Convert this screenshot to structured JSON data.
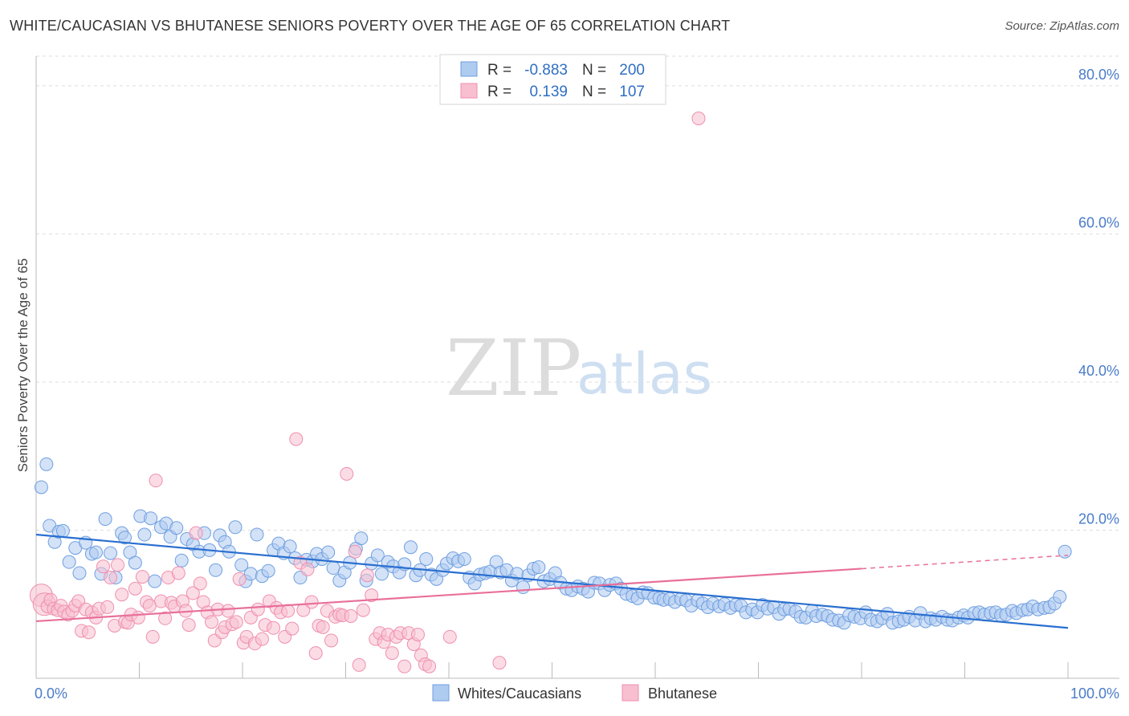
{
  "title": "WHITE/CAUCASIAN VS BHUTANESE SENIORS POVERTY OVER THE AGE OF 65 CORRELATION CHART",
  "source": "Source: ZipAtlas.com",
  "watermark": {
    "zip": "ZIP",
    "atlas": "atlas"
  },
  "colors": {
    "blue_fill": "#aecbf0",
    "blue_stroke": "#6f9fe0",
    "blue_line": "#2a6fd0",
    "pink_fill": "#f7bfd0",
    "pink_stroke": "#ef8fb0",
    "pink_line": "#e8709a",
    "grid": "#dddddd",
    "tick_label": "#4a7cc9"
  },
  "chart_data": {
    "type": "scatter",
    "title": "WHITE/CAUCASIAN VS BHUTANESE SENIORS POVERTY OVER THE AGE OF 65 CORRELATION CHART",
    "xlabel": "",
    "ylabel": "Seniors Poverty Over the Age of 65",
    "xlim": [
      0,
      100
    ],
    "ylim": [
      0,
      84
    ],
    "x_tick_labels": [
      "0.0%",
      "100.0%"
    ],
    "y_ticks": [
      20,
      40,
      60,
      80
    ],
    "y_tick_labels": [
      "20.0%",
      "40.0%",
      "60.0%",
      "80.0%"
    ],
    "grid": "horizontal dashed",
    "legend_position": "top-center",
    "legend": [
      {
        "r_label": "R =",
        "r_value": "-0.883",
        "n_label": "N =",
        "n_value": "200"
      },
      {
        "r_label": "R =",
        "r_value": "0.139",
        "n_label": "N =",
        "n_value": "107"
      }
    ],
    "series": [
      {
        "name": "Whites/Caucasians",
        "trend": {
          "x": [
            0,
            100
          ],
          "y": [
            19.4,
            6.8
          ]
        },
        "points": [
          [
            0.5,
            25.8
          ],
          [
            1,
            28.9
          ],
          [
            1.3,
            20.6
          ],
          [
            1.8,
            18.4
          ],
          [
            2.2,
            19.8
          ],
          [
            2.6,
            19.9
          ],
          [
            3.2,
            15.7
          ],
          [
            3.8,
            17.6
          ],
          [
            4.2,
            14.2
          ],
          [
            4.8,
            18.3
          ],
          [
            5.4,
            16.8
          ],
          [
            5.8,
            17
          ],
          [
            6.3,
            14.1
          ],
          [
            6.7,
            21.5
          ],
          [
            7.2,
            16.9
          ],
          [
            7.7,
            13.6
          ],
          [
            8.3,
            19.6
          ],
          [
            8.6,
            19
          ],
          [
            9.1,
            17
          ],
          [
            9.6,
            15.6
          ],
          [
            10.1,
            21.9
          ],
          [
            10.5,
            19.4
          ],
          [
            11.1,
            21.6
          ],
          [
            11.5,
            13.1
          ],
          [
            12.1,
            20.4
          ],
          [
            12.6,
            20.9
          ],
          [
            13,
            19.1
          ],
          [
            13.6,
            20.3
          ],
          [
            14.1,
            15.9
          ],
          [
            14.6,
            18.8
          ],
          [
            15.2,
            18.1
          ],
          [
            15.8,
            17.1
          ],
          [
            16.3,
            19.6
          ],
          [
            16.8,
            17.3
          ],
          [
            17.4,
            14.6
          ],
          [
            17.8,
            19.3
          ],
          [
            18.3,
            18.4
          ],
          [
            18.7,
            17.1
          ],
          [
            19.3,
            20.4
          ],
          [
            19.9,
            15.3
          ],
          [
            20.3,
            13.1
          ],
          [
            20.8,
            14.1
          ],
          [
            21.4,
            19.4
          ],
          [
            21.9,
            13.8
          ],
          [
            22.5,
            14.5
          ],
          [
            23,
            17.3
          ],
          [
            23.5,
            18.2
          ],
          [
            24,
            16.9
          ],
          [
            24.6,
            17.8
          ],
          [
            25.1,
            16.2
          ],
          [
            25.6,
            13.6
          ],
          [
            26.2,
            16
          ],
          [
            26.8,
            15.8
          ],
          [
            27.2,
            16.8
          ],
          [
            27.7,
            16.1
          ],
          [
            28.3,
            17
          ],
          [
            28.8,
            14.9
          ],
          [
            29.4,
            13.2
          ],
          [
            29.9,
            14.3
          ],
          [
            30.4,
            15.6
          ],
          [
            31,
            17.5
          ],
          [
            31.5,
            18.9
          ],
          [
            32,
            13.2
          ],
          [
            32.5,
            15.5
          ],
          [
            33.1,
            16.6
          ],
          [
            33.5,
            14.1
          ],
          [
            34.1,
            15.7
          ],
          [
            34.6,
            15.1
          ],
          [
            35.2,
            14.3
          ],
          [
            35.7,
            15.4
          ],
          [
            36.3,
            17.7
          ],
          [
            36.8,
            13.9
          ],
          [
            37.2,
            14.6
          ],
          [
            37.8,
            16.1
          ],
          [
            38.3,
            14
          ],
          [
            38.8,
            13.4
          ],
          [
            39.4,
            14.6
          ],
          [
            39.8,
            15.5
          ],
          [
            40.4,
            16.2
          ],
          [
            40.9,
            15.8
          ],
          [
            41.5,
            16.1
          ],
          [
            42,
            13.6
          ],
          [
            42.5,
            12.8
          ],
          [
            43,
            14
          ],
          [
            43.5,
            14.2
          ],
          [
            44,
            14.4
          ],
          [
            44.6,
            15.7
          ],
          [
            45,
            14.3
          ],
          [
            45.6,
            14.6
          ],
          [
            46.1,
            13.2
          ],
          [
            46.6,
            14.1
          ],
          [
            47.2,
            12.3
          ],
          [
            47.7,
            13.9
          ],
          [
            48.2,
            14.8
          ],
          [
            48.7,
            15
          ],
          [
            49.2,
            13.1
          ],
          [
            49.8,
            13.4
          ],
          [
            50.3,
            14.2
          ],
          [
            50.8,
            12.9
          ],
          [
            51.4,
            12.1
          ],
          [
            51.9,
            11.9
          ],
          [
            52.5,
            12.4
          ],
          [
            53,
            12.1
          ],
          [
            53.5,
            11.7
          ],
          [
            54.1,
            12.9
          ],
          [
            54.6,
            12.8
          ],
          [
            55.1,
            11.9
          ],
          [
            55.6,
            12.6
          ],
          [
            56.2,
            12.8
          ],
          [
            56.7,
            12.1
          ],
          [
            57.2,
            11.4
          ],
          [
            57.8,
            11.1
          ],
          [
            58.3,
            10.8
          ],
          [
            58.8,
            11.6
          ],
          [
            59.3,
            11.5
          ],
          [
            59.9,
            10.9
          ],
          [
            60.4,
            10.8
          ],
          [
            60.8,
            10.6
          ],
          [
            61.4,
            10.7
          ],
          [
            61.9,
            10.3
          ],
          [
            62.5,
            10.7
          ],
          [
            63,
            10.5
          ],
          [
            63.5,
            9.8
          ],
          [
            64.1,
            10.5
          ],
          [
            64.6,
            10.1
          ],
          [
            65.1,
            9.6
          ],
          [
            65.6,
            10.1
          ],
          [
            66.2,
            9.7
          ],
          [
            66.7,
            10
          ],
          [
            67.3,
            9.5
          ],
          [
            67.8,
            9.9
          ],
          [
            68.3,
            9.8
          ],
          [
            68.8,
            8.9
          ],
          [
            69.4,
            9.3
          ],
          [
            69.9,
            8.9
          ],
          [
            70.4,
            9.9
          ],
          [
            70.9,
            9.4
          ],
          [
            71.5,
            9.6
          ],
          [
            72,
            8.7
          ],
          [
            72.5,
            9.3
          ],
          [
            73,
            9.4
          ],
          [
            73.6,
            9
          ],
          [
            74.1,
            8.3
          ],
          [
            74.6,
            8.2
          ],
          [
            75.2,
            9.1
          ],
          [
            75.6,
            8.4
          ],
          [
            76.2,
            8.6
          ],
          [
            76.7,
            8.4
          ],
          [
            77.2,
            7.9
          ],
          [
            77.8,
            7.8
          ],
          [
            78.3,
            7.5
          ],
          [
            78.8,
            8.5
          ],
          [
            79.3,
            8.3
          ],
          [
            79.9,
            8.1
          ],
          [
            80.4,
            8.9
          ],
          [
            80.9,
            7.9
          ],
          [
            81.5,
            7.7
          ],
          [
            82,
            8.1
          ],
          [
            82.5,
            8.7
          ],
          [
            83,
            7.5
          ],
          [
            83.6,
            7.7
          ],
          [
            84.1,
            7.9
          ],
          [
            84.6,
            8.3
          ],
          [
            85.2,
            7.8
          ],
          [
            85.7,
            8.8
          ],
          [
            86.2,
            7.7
          ],
          [
            86.7,
            8.1
          ],
          [
            87.2,
            7.9
          ],
          [
            87.8,
            8.3
          ],
          [
            88.3,
            7.9
          ],
          [
            88.8,
            7.8
          ],
          [
            89.4,
            8.2
          ],
          [
            89.9,
            8.5
          ],
          [
            90.3,
            8.2
          ],
          [
            90.9,
            8.8
          ],
          [
            91.4,
            8.9
          ],
          [
            91.9,
            8.6
          ],
          [
            92.5,
            8.8
          ],
          [
            93,
            8.9
          ],
          [
            93.5,
            8.5
          ],
          [
            94,
            8.6
          ],
          [
            94.6,
            9.1
          ],
          [
            95,
            8.8
          ],
          [
            95.6,
            9.2
          ],
          [
            96.1,
            9.3
          ],
          [
            96.6,
            9.7
          ],
          [
            97.1,
            9.3
          ],
          [
            97.7,
            9.5
          ],
          [
            98.2,
            9.6
          ],
          [
            98.7,
            10.1
          ],
          [
            99.2,
            11
          ],
          [
            99.7,
            17.1
          ]
        ]
      },
      {
        "name": "Bhutanese",
        "trend": {
          "x": [
            0,
            80,
            100
          ],
          "y": [
            7.7,
            14.8,
            16.6
          ]
        },
        "points": [
          [
            0.5,
            11.2
          ],
          [
            0.8,
            10
          ],
          [
            1.1,
            9.7
          ],
          [
            1.4,
            10.6
          ],
          [
            1.7,
            9.4
          ],
          [
            2.1,
            9.2
          ],
          [
            2.4,
            9.8
          ],
          [
            2.7,
            9
          ],
          [
            3.1,
            8.6
          ],
          [
            3.5,
            9.1
          ],
          [
            3.8,
            9.8
          ],
          [
            4.1,
            10.4
          ],
          [
            4.4,
            6.4
          ],
          [
            4.8,
            9.3
          ],
          [
            5.1,
            6.2
          ],
          [
            5.4,
            8.9
          ],
          [
            5.8,
            8.2
          ],
          [
            6.1,
            9.4
          ],
          [
            6.5,
            15.1
          ],
          [
            6.9,
            9.6
          ],
          [
            7.2,
            13.6
          ],
          [
            7.6,
            7.1
          ],
          [
            7.9,
            15.3
          ],
          [
            8.3,
            11.3
          ],
          [
            8.6,
            7.6
          ],
          [
            8.9,
            7.5
          ],
          [
            9.2,
            8.6
          ],
          [
            9.6,
            12.1
          ],
          [
            9.9,
            8.2
          ],
          [
            10.3,
            13.7
          ],
          [
            10.7,
            10.3
          ],
          [
            11,
            9.8
          ],
          [
            11.3,
            5.6
          ],
          [
            11.6,
            26.7
          ],
          [
            12.1,
            10.4
          ],
          [
            12.5,
            8.1
          ],
          [
            12.8,
            13.6
          ],
          [
            13.1,
            10.2
          ],
          [
            13.4,
            9.7
          ],
          [
            13.8,
            14.2
          ],
          [
            14.2,
            10.4
          ],
          [
            14.5,
            9.1
          ],
          [
            14.8,
            7.2
          ],
          [
            15.2,
            11.5
          ],
          [
            15.5,
            19.6
          ],
          [
            15.9,
            12.8
          ],
          [
            16.2,
            10.3
          ],
          [
            16.6,
            8.9
          ],
          [
            17,
            7.6
          ],
          [
            17.3,
            5.1
          ],
          [
            17.6,
            9.3
          ],
          [
            18,
            6.2
          ],
          [
            18.3,
            6.9
          ],
          [
            18.6,
            9.1
          ],
          [
            19,
            7.3
          ],
          [
            19.4,
            7.6
          ],
          [
            19.7,
            13.4
          ],
          [
            20.1,
            4.8
          ],
          [
            20.4,
            5.6
          ],
          [
            20.8,
            8.2
          ],
          [
            21.2,
            4.7
          ],
          [
            21.5,
            9.3
          ],
          [
            21.9,
            5.3
          ],
          [
            22.2,
            7.2
          ],
          [
            22.6,
            10.4
          ],
          [
            23,
            6.8
          ],
          [
            23.3,
            9.5
          ],
          [
            23.7,
            8.9
          ],
          [
            24.1,
            5.6
          ],
          [
            24.4,
            9.1
          ],
          [
            24.8,
            6.7
          ],
          [
            25.2,
            32.3
          ],
          [
            25.6,
            15.6
          ],
          [
            25.9,
            9.2
          ],
          [
            26.3,
            14.7
          ],
          [
            26.7,
            10.3
          ],
          [
            27.1,
            3.4
          ],
          [
            27.4,
            7.1
          ],
          [
            27.8,
            6.9
          ],
          [
            28.2,
            9.1
          ],
          [
            28.6,
            5.1
          ],
          [
            29,
            8.3
          ],
          [
            29.4,
            8.6
          ],
          [
            29.7,
            8.5
          ],
          [
            30.1,
            27.6
          ],
          [
            30.5,
            8.4
          ],
          [
            30.9,
            17.1
          ],
          [
            31.3,
            1.8
          ],
          [
            31.7,
            9.2
          ],
          [
            32.1,
            13.9
          ],
          [
            32.5,
            11.2
          ],
          [
            32.9,
            5.3
          ],
          [
            33.3,
            6.1
          ],
          [
            33.7,
            4.9
          ],
          [
            34.1,
            5.9
          ],
          [
            34.5,
            3.4
          ],
          [
            34.9,
            5.6
          ],
          [
            35.3,
            6.1
          ],
          [
            35.7,
            1.6
          ],
          [
            36.1,
            6.1
          ],
          [
            36.6,
            4.6
          ],
          [
            37,
            5.9
          ],
          [
            37.3,
            3.1
          ],
          [
            37.7,
            1.9
          ],
          [
            38.1,
            1.6
          ],
          [
            40.1,
            5.6
          ],
          [
            44.9,
            2.1
          ],
          [
            64.2,
            75.6
          ]
        ]
      }
    ]
  }
}
